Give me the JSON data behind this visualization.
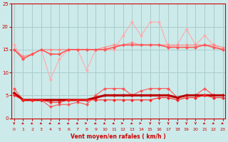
{
  "x": [
    0,
    1,
    2,
    3,
    4,
    5,
    6,
    7,
    8,
    9,
    10,
    11,
    12,
    13,
    14,
    15,
    16,
    17,
    18,
    19,
    20,
    21,
    22,
    23
  ],
  "line1": [
    16,
    13,
    14,
    15,
    8.5,
    13,
    15,
    15,
    10.5,
    15,
    15,
    15,
    18,
    21,
    18,
    21,
    21,
    15.5,
    16,
    19.5,
    16,
    18,
    16,
    15
  ],
  "line2": [
    15,
    13.5,
    14,
    15,
    15,
    15,
    15,
    15,
    15,
    15,
    15.5,
    16,
    16,
    16.5,
    16,
    16,
    16,
    16,
    16,
    16,
    16,
    16,
    16,
    15.5
  ],
  "line3": [
    15,
    13,
    14,
    15,
    14,
    14,
    15,
    15,
    15,
    15,
    15,
    15.5,
    16,
    16,
    16,
    16,
    16,
    15.5,
    15.5,
    15.5,
    15.5,
    16,
    15.5,
    15
  ],
  "line4": [
    6.5,
    4,
    4,
    4,
    2.5,
    3,
    3,
    3.5,
    3,
    5,
    6.5,
    6.5,
    6.5,
    5,
    6,
    6.5,
    6.5,
    6.5,
    4.5,
    5,
    5,
    6.5,
    5,
    5
  ],
  "line5": [
    5.5,
    4,
    4,
    4,
    4,
    4,
    4,
    4,
    4,
    4.5,
    5,
    5,
    5,
    5,
    5,
    5,
    5,
    5,
    4.5,
    5,
    5,
    5,
    5,
    5
  ],
  "line6": [
    5,
    4,
    4,
    4,
    3.5,
    3.5,
    4,
    4,
    4,
    4,
    4,
    4,
    4,
    4,
    4,
    4,
    4.5,
    4.5,
    4,
    4.5,
    4.5,
    5,
    4.5,
    4.5
  ],
  "bg_color": "#cceaea",
  "grid_color": "#aacccc",
  "line1_color": "#ffaaaa",
  "line2_color": "#ff8888",
  "line3_color": "#ff5555",
  "line4_color": "#ff5555",
  "line5_color": "#bb0000",
  "line6_color": "#ff2222",
  "xlabel": "Vent moyen/en rafales ( km/h )",
  "xlim": [
    -0.3,
    23.3
  ],
  "ylim": [
    0,
    25
  ],
  "yticks": [
    0,
    5,
    10,
    15,
    20,
    25
  ],
  "xtick_labels": [
    "0",
    "1",
    "2",
    "3",
    "4",
    "5",
    "6",
    "7",
    "8",
    "9",
    "10",
    "11",
    "12",
    "13",
    "14",
    "15",
    "16",
    "17",
    "18",
    "19",
    "20",
    "21",
    "22",
    "23"
  ],
  "arrow_dirs_x": [
    0,
    -1,
    -1,
    -1,
    -1,
    -1,
    -1,
    -1,
    1,
    -1,
    -1,
    -1,
    1,
    -1,
    1,
    0,
    0,
    0,
    0,
    0,
    0,
    -1,
    -1,
    -1
  ],
  "arrow_dirs_y": [
    -1,
    -1,
    -1,
    -1,
    -1,
    -1,
    -1,
    -1,
    0,
    -1,
    -1,
    -1,
    0,
    -1,
    0,
    -1,
    -1,
    -1,
    -1,
    -1,
    -1,
    -1,
    -1,
    -1
  ]
}
